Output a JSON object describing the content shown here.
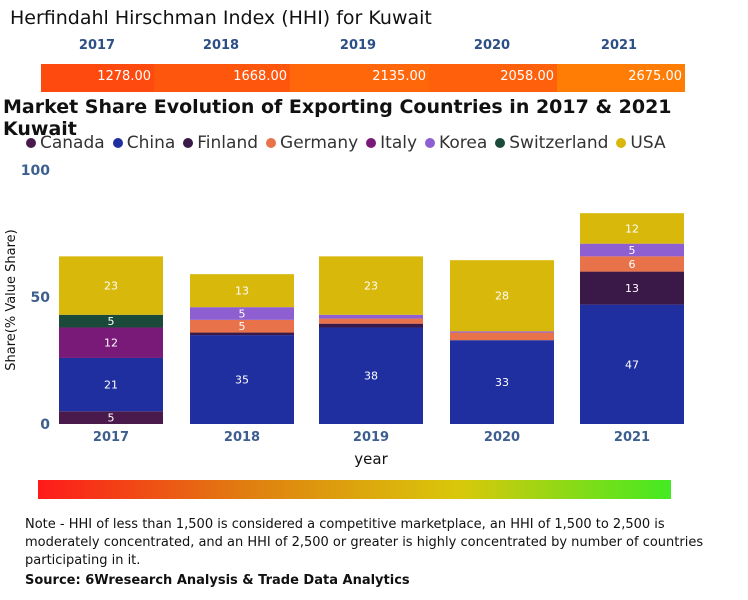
{
  "hhi": {
    "title": "Herfindahl Hirschman Index (HHI) for Kuwait",
    "years": [
      "2017",
      "2018",
      "2019",
      "2020",
      "2021"
    ],
    "values": [
      "1278.00",
      "1668.00",
      "2135.00",
      "2058.00",
      "2675.00"
    ],
    "colors": [
      "#ff4a0f",
      "#ff560d",
      "#ff670a",
      "#ff600b",
      "#ff7d05"
    ]
  },
  "chart_title": "Market Share Evolution of Exporting Countries in 2017 & 2021 Kuwait",
  "chart_data": {
    "type": "bar",
    "stacked": true,
    "title": "Market Share Evolution of Exporting Countries in 2017 & 2021 Kuwait",
    "categories": [
      "2017",
      "2018",
      "2019",
      "2020",
      "2021"
    ],
    "xlabel": "year",
    "ylabel": "Share(% Value Share)",
    "ylim": [
      0,
      100
    ],
    "yticks": [
      0,
      50,
      100
    ],
    "series": [
      {
        "name": "Canada",
        "color": "#4b1a4c",
        "values": [
          5,
          0,
          0,
          0,
          0
        ],
        "labels": [
          "5",
          "",
          "",
          "",
          ""
        ]
      },
      {
        "name": "China",
        "color": "#1f2fa0",
        "values": [
          21,
          35,
          38,
          33,
          47
        ],
        "labels": [
          "21",
          "35",
          "38",
          "33",
          "47"
        ]
      },
      {
        "name": "Finland",
        "color": "#3a1848",
        "values": [
          0,
          1,
          1.5,
          0,
          13
        ],
        "labels": [
          "",
          "",
          "",
          "",
          "13"
        ]
      },
      {
        "name": "Germany",
        "color": "#e8734a",
        "values": [
          0,
          5,
          2,
          3,
          6
        ],
        "labels": [
          "",
          "5",
          "",
          "",
          "6"
        ]
      },
      {
        "name": "Italy",
        "color": "#7a1a78",
        "values": [
          12,
          0,
          0,
          0,
          0
        ],
        "labels": [
          "12",
          "",
          "",
          "",
          ""
        ]
      },
      {
        "name": "Korea",
        "color": "#8e5fd0",
        "values": [
          0,
          5,
          1.5,
          0.5,
          5
        ],
        "labels": [
          "",
          "5",
          "",
          "",
          "5"
        ]
      },
      {
        "name": "Switzerland",
        "color": "#1b4a3a",
        "values": [
          5,
          0,
          0,
          0,
          0
        ],
        "labels": [
          "5",
          "",
          "",
          "",
          ""
        ]
      },
      {
        "name": "USA",
        "color": "#d9b80c",
        "values": [
          23,
          13,
          23,
          28,
          12
        ],
        "labels": [
          "23",
          "13",
          "23",
          "28",
          "12"
        ]
      }
    ]
  },
  "note": "Note - HHI of less than 1,500 is considered a competitive marketplace, an HHI of 1,500 to 2,500 is moderately concentrated, and an HHI of 2,500 or greater is highly concentrated by number of countries participating in it.",
  "source": "Source: 6Wresearch Analysis & Trade Data Analytics"
}
